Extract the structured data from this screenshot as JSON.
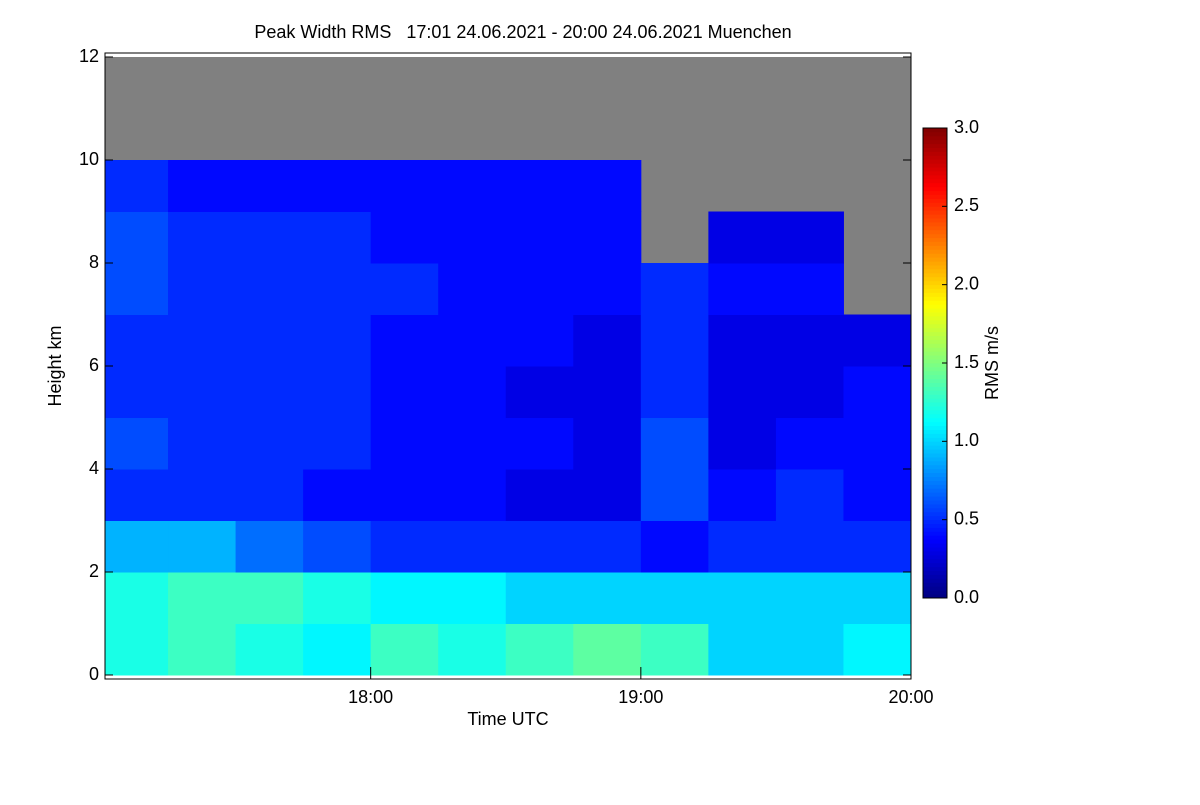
{
  "chart_data": {
    "type": "heatmap",
    "title": "Peak Width RMS   17:01 24.06.2021 - 20:00 24.06.2021 Muenchen",
    "x_label": "Time UTC",
    "y_label": "Height km",
    "xlim": [
      "17:01",
      "20:00"
    ],
    "xticks": [
      "18:00",
      "19:00",
      "20:00"
    ],
    "ylim": [
      0,
      12
    ],
    "yticks": [
      0,
      2,
      4,
      6,
      8,
      10,
      12
    ],
    "x_bins": [
      "17:01",
      "17:15",
      "17:30",
      "17:45",
      "18:00",
      "18:15",
      "18:30",
      "18:45",
      "19:00",
      "19:15",
      "19:30",
      "19:45",
      "20:00"
    ],
    "y_bins": [
      0,
      1,
      2,
      3,
      4,
      5,
      6,
      7,
      8,
      9,
      10,
      11,
      12
    ],
    "values": [
      [
        1.2,
        1.3,
        1.2,
        1.1,
        1.3,
        1.2,
        1.3,
        1.4,
        1.3,
        1.0,
        1.0,
        1.1
      ],
      [
        1.2,
        1.3,
        1.3,
        1.2,
        1.1,
        1.1,
        1.0,
        1.0,
        1.0,
        1.0,
        1.0,
        1.0
      ],
      [
        0.9,
        0.9,
        0.7,
        0.6,
        0.5,
        0.5,
        0.5,
        0.5,
        0.4,
        0.5,
        0.5,
        0.5
      ],
      [
        0.5,
        0.5,
        0.5,
        0.4,
        0.4,
        0.4,
        0.3,
        0.3,
        0.6,
        0.4,
        0.5,
        0.4
      ],
      [
        0.6,
        0.5,
        0.5,
        0.5,
        0.4,
        0.4,
        0.4,
        0.3,
        0.6,
        0.3,
        0.4,
        0.4
      ],
      [
        0.5,
        0.5,
        0.5,
        0.5,
        0.4,
        0.4,
        0.3,
        0.3,
        0.5,
        0.3,
        0.3,
        0.4
      ],
      [
        0.5,
        0.5,
        0.5,
        0.5,
        0.4,
        0.4,
        0.4,
        0.3,
        0.5,
        0.3,
        0.3,
        0.3
      ],
      [
        0.6,
        0.5,
        0.5,
        0.5,
        0.5,
        0.4,
        0.4,
        0.4,
        0.5,
        0.4,
        0.4,
        null
      ],
      [
        0.6,
        0.5,
        0.5,
        0.5,
        0.4,
        0.4,
        0.4,
        0.4,
        null,
        0.3,
        0.3,
        null
      ],
      [
        0.5,
        0.4,
        0.4,
        0.4,
        0.4,
        0.4,
        0.4,
        0.4,
        null,
        null,
        null,
        null
      ],
      [
        null,
        null,
        null,
        null,
        null,
        null,
        null,
        null,
        null,
        null,
        null,
        null
      ],
      [
        null,
        null,
        null,
        null,
        null,
        null,
        null,
        null,
        null,
        null,
        null,
        null
      ]
    ],
    "colormap": "jet",
    "missing_color": "#808080",
    "colorbar": {
      "label": "RMS m/s",
      "lim": [
        0,
        3
      ],
      "ticks": [
        {
          "value": 0,
          "label": "0.0"
        },
        {
          "value": 0.5,
          "label": "0.5"
        },
        {
          "value": 1,
          "label": "1.0"
        },
        {
          "value": 1.5,
          "label": "1.5"
        },
        {
          "value": 2,
          "label": "2.0"
        },
        {
          "value": 2.5,
          "label": "2.5"
        },
        {
          "value": 3,
          "label": "3.0"
        }
      ]
    }
  }
}
